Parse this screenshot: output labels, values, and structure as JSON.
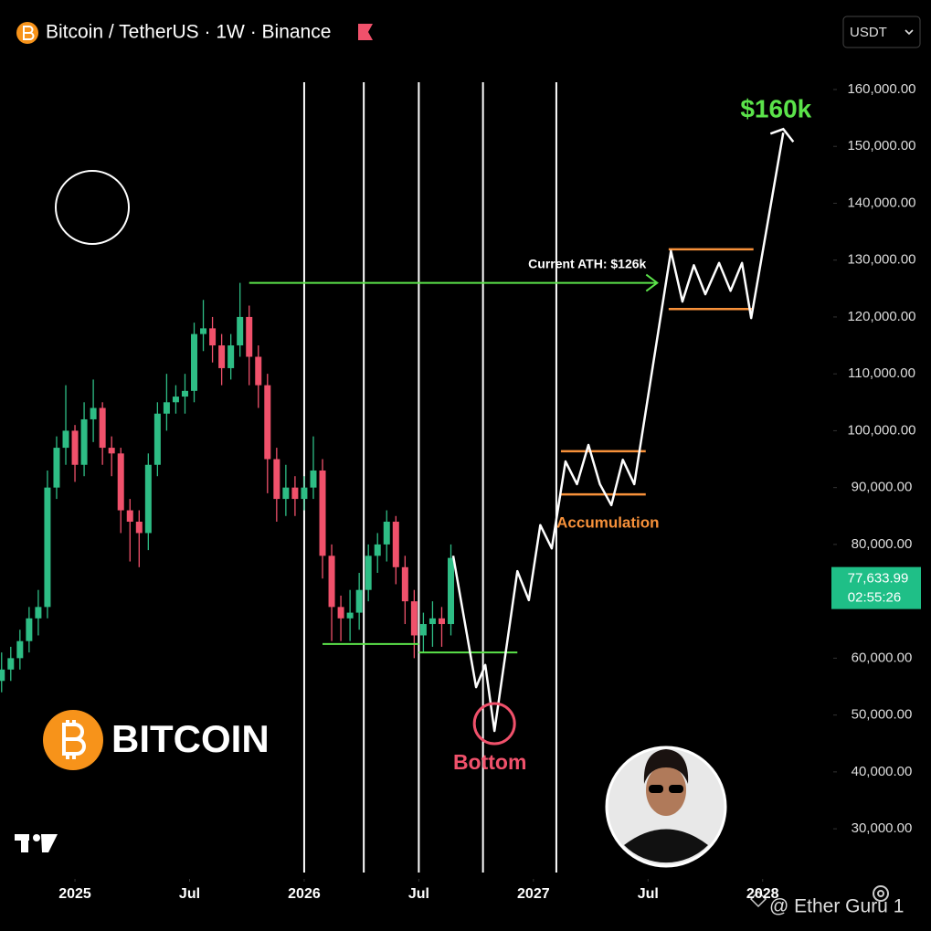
{
  "chart_data": {
    "type": "candlestick",
    "title": "Bitcoin / TetherUS · 1W · Binance",
    "currency": "USDT",
    "xlim": [
      2024.673,
      2028.3
    ],
    "ylim": [
      21500,
      166100
    ],
    "xticks": [
      2025,
      {
        "value": 2025.5,
        "label": "Jul"
      },
      2026,
      {
        "value": 2026.5,
        "label": "Jul"
      },
      2027,
      {
        "value": 2027.5,
        "label": "Jul"
      },
      2028
    ],
    "yticks": [
      {
        "value": 30000,
        "label": "30,000.00"
      },
      {
        "value": 40000,
        "label": "40,000.00"
      },
      {
        "value": 50000,
        "label": "50,000.00"
      },
      {
        "value": 60000,
        "label": "60,000.00"
      },
      {
        "value": 80000,
        "label": "80,000.00"
      },
      {
        "value": 90000,
        "label": "90,000.00"
      },
      {
        "value": 100000,
        "label": "100,000.00"
      },
      {
        "value": 110000,
        "label": "110,000.00"
      },
      {
        "value": 120000,
        "label": "120,000.00"
      },
      {
        "value": 130000,
        "label": "130,000.00"
      },
      {
        "value": 140000,
        "label": "140,000.00"
      },
      {
        "value": 150000,
        "label": "150,000.00"
      },
      {
        "value": 160000,
        "label": "160,000.00"
      }
    ],
    "up_color": "#2ebd85",
    "down_color": "#f0516b",
    "x": [
      2024.68,
      2024.72,
      2024.76,
      2024.8,
      2024.84,
      2024.88,
      2024.92,
      2024.96,
      2025.0,
      2025.04,
      2025.08,
      2025.12,
      2025.16,
      2025.2,
      2025.24,
      2025.28,
      2025.32,
      2025.36,
      2025.4,
      2025.44,
      2025.48,
      2025.52,
      2025.56,
      2025.6,
      2025.64,
      2025.68,
      2025.72,
      2025.76,
      2025.8,
      2025.84,
      2025.88,
      2025.92,
      2025.96,
      2026.0,
      2026.04,
      2026.08,
      2026.12,
      2026.16,
      2026.2,
      2026.24,
      2026.28,
      2026.32,
      2026.36,
      2026.4,
      2026.44,
      2026.48,
      2026.52,
      2026.56,
      2026.6,
      2026.64
    ],
    "open": [
      56000,
      58000,
      60000,
      63000,
      67000,
      69000,
      90000,
      97000,
      100000,
      94000,
      102000,
      104000,
      97000,
      96000,
      86000,
      84000,
      82000,
      94000,
      103000,
      105000,
      106000,
      107000,
      117000,
      118000,
      115000,
      111000,
      115000,
      120000,
      113000,
      108000,
      95000,
      88000,
      90000,
      88000,
      90000,
      93000,
      78000,
      69000,
      67000,
      68000,
      72000,
      78000,
      80000,
      84000,
      76000,
      70000,
      64000,
      66000,
      67000,
      66000
    ],
    "high": [
      61000,
      62000,
      65000,
      69000,
      72000,
      93000,
      99000,
      108000,
      101000,
      105000,
      109000,
      105000,
      99000,
      97000,
      88000,
      86000,
      96000,
      105000,
      110000,
      108000,
      110000,
      119000,
      123000,
      120000,
      117000,
      117000,
      126000,
      122000,
      115000,
      110000,
      97000,
      94000,
      92000,
      92000,
      99000,
      95000,
      80000,
      71000,
      72000,
      75000,
      80000,
      82000,
      86000,
      85000,
      78000,
      72000,
      68000,
      70000,
      69000,
      80000
    ],
    "low": [
      54000,
      56000,
      58000,
      61000,
      64000,
      67000,
      88000,
      94000,
      91000,
      92000,
      98000,
      94000,
      92000,
      82000,
      77000,
      76000,
      79000,
      92000,
      100000,
      103000,
      103000,
      105000,
      114000,
      112000,
      108000,
      109000,
      113000,
      108000,
      104000,
      89000,
      84000,
      85000,
      85000,
      86000,
      88000,
      74000,
      63000,
      63000,
      63000,
      65000,
      70000,
      75000,
      77000,
      73000,
      66000,
      60000,
      61000,
      62000,
      62000,
      64000
    ],
    "close": [
      58000,
      60000,
      63000,
      67000,
      69000,
      90000,
      97000,
      100000,
      94000,
      102000,
      104000,
      97000,
      96000,
      86000,
      84000,
      82000,
      94000,
      103000,
      105000,
      106000,
      107000,
      117000,
      118000,
      115000,
      111000,
      115000,
      120000,
      113000,
      108000,
      95000,
      88000,
      90000,
      88000,
      90000,
      93000,
      78000,
      69000,
      67000,
      68000,
      72000,
      78000,
      80000,
      84000,
      76000,
      70000,
      64000,
      66000,
      67000,
      66000,
      77633.99
    ],
    "last_price": {
      "value": 77633.99,
      "label": "77,633.99",
      "countdown": "02:55:26",
      "color": "#1fbf87"
    },
    "projection": {
      "color": "#ffffff",
      "x": [
        2026.65,
        2026.75,
        2026.79,
        2026.83,
        2026.93,
        2026.98,
        2027.03,
        2027.08,
        2027.14,
        2027.19,
        2027.24,
        2027.29,
        2027.34,
        2027.39,
        2027.44,
        2027.6,
        2027.65,
        2027.7,
        2027.75,
        2027.81,
        2027.86,
        2027.91,
        2027.95,
        2028.09
      ],
      "values": [
        78000,
        54900,
        58800,
        47200,
        75300,
        70200,
        83400,
        79300,
        94600,
        90600,
        97500,
        90600,
        86900,
        94900,
        90600,
        131600,
        122700,
        129100,
        124000,
        129500,
        124600,
        129500,
        119800,
        152400
      ]
    },
    "level_color": "#5be34a",
    "ath_line": {
      "value": 126000,
      "x": [
        2025.76,
        2027.54
      ]
    },
    "support_lines": [
      {
        "value": 62500,
        "x": [
          2026.08,
          2026.5
        ]
      },
      {
        "value": 61000,
        "x": [
          2026.5,
          2026.93
        ]
      }
    ],
    "range_color": "#f7913a",
    "ranges": [
      {
        "high": 96400,
        "low": 88800,
        "x": [
          2027.12,
          2027.49
        ]
      },
      {
        "high": 131900,
        "low": 121400,
        "x": [
          2027.59,
          2027.96
        ]
      }
    ],
    "vertical_lines": [
      2026.0,
      2026.26,
      2026.5,
      2026.78,
      2027.1
    ],
    "annotations": {
      "target": "$160k",
      "ath": "Current ATH: $126k",
      "accumulation": "Accumulation",
      "bottom": "Bottom"
    },
    "bottom_color": "#f0516b",
    "branding": {
      "name": "BITCOIN",
      "watermark": "@ Ether Guru 1"
    }
  }
}
